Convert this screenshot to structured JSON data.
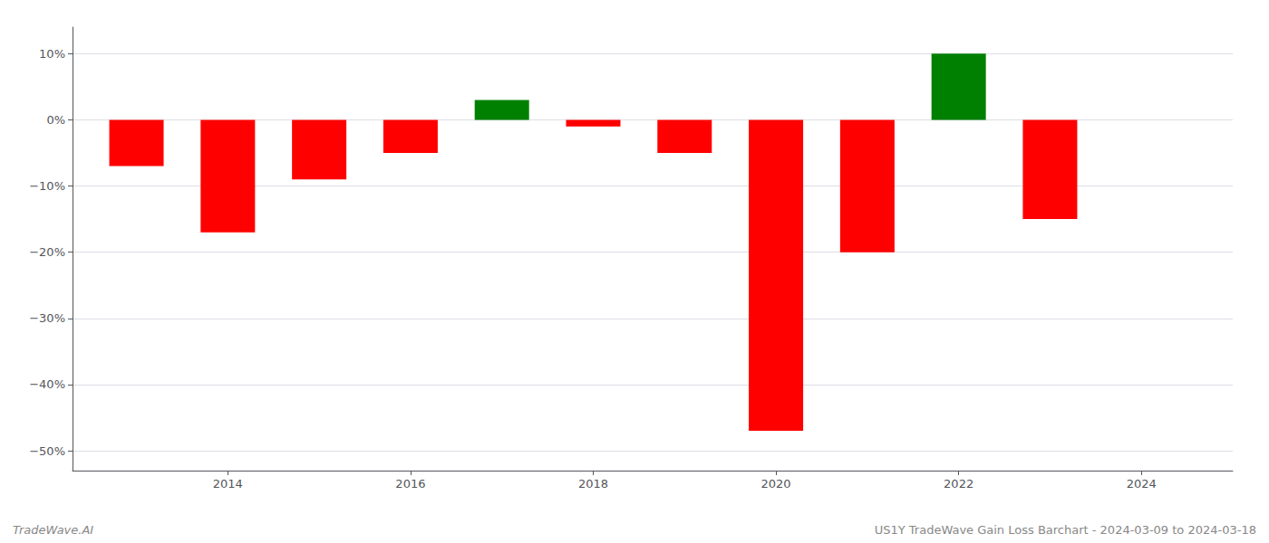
{
  "chart_data": {
    "type": "bar",
    "x": [
      2013,
      2014,
      2015,
      2016,
      2017,
      2018,
      2019,
      2020,
      2021,
      2022,
      2023
    ],
    "values": [
      -7.0,
      -17.0,
      -9.0,
      -5.0,
      3.0,
      -1.0,
      -5.0,
      -47.0,
      -20.0,
      10.0,
      -15.0
    ],
    "colors": [
      "#ff0000",
      "#ff0000",
      "#ff0000",
      "#ff0000",
      "#008000",
      "#ff0000",
      "#ff0000",
      "#ff0000",
      "#ff0000",
      "#008000",
      "#ff0000"
    ],
    "xlim": [
      2012.3,
      2025.0
    ],
    "xticks": [
      2014,
      2016,
      2018,
      2020,
      2022,
      2024
    ],
    "ylim": [
      -53,
      14
    ],
    "yticks": [
      {
        "value": 10,
        "label": "10%"
      },
      {
        "value": 0,
        "label": "0%"
      },
      {
        "value": -10,
        "label": "−10%"
      },
      {
        "value": -20,
        "label": "−20%"
      },
      {
        "value": -30,
        "label": "−30%"
      },
      {
        "value": -40,
        "label": "−40%"
      },
      {
        "value": -50,
        "label": "−50%"
      }
    ],
    "grid": "y",
    "annotations": [
      "TradeWave.AI",
      "US1Y TradeWave Gain Loss Barchart - 2024-03-09 to 2024-03-18"
    ]
  }
}
